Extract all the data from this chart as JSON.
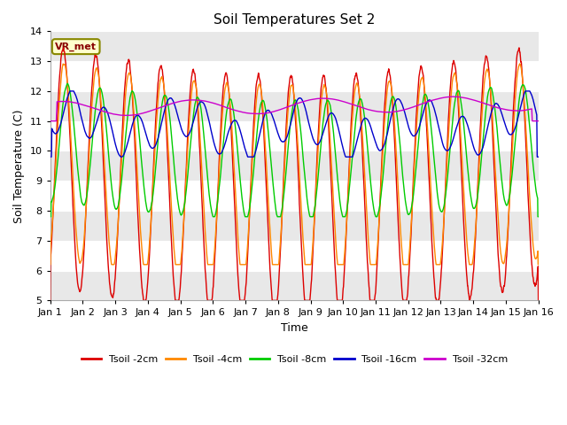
{
  "title": "Soil Temperatures Set 2",
  "xlabel": "Time",
  "ylabel": "Soil Temperature (C)",
  "ylim": [
    5.0,
    14.0
  ],
  "yticks": [
    5.0,
    6.0,
    7.0,
    8.0,
    9.0,
    10.0,
    11.0,
    12.0,
    13.0,
    14.0
  ],
  "fig_bg_color": "#ffffff",
  "plot_bg_color": "#ffffff",
  "band_colors": [
    "#e8e8e8",
    "#ffffff"
  ],
  "colors": {
    "Tsoil -2cm": "#dd0000",
    "Tsoil -4cm": "#ff8800",
    "Tsoil -8cm": "#00cc00",
    "Tsoil -16cm": "#0000cc",
    "Tsoil -32cm": "#cc00cc"
  },
  "legend_label": "VR_met",
  "legend_bg": "#ffffcc",
  "legend_border": "#888800",
  "n_days": 15,
  "points_per_day": 144
}
